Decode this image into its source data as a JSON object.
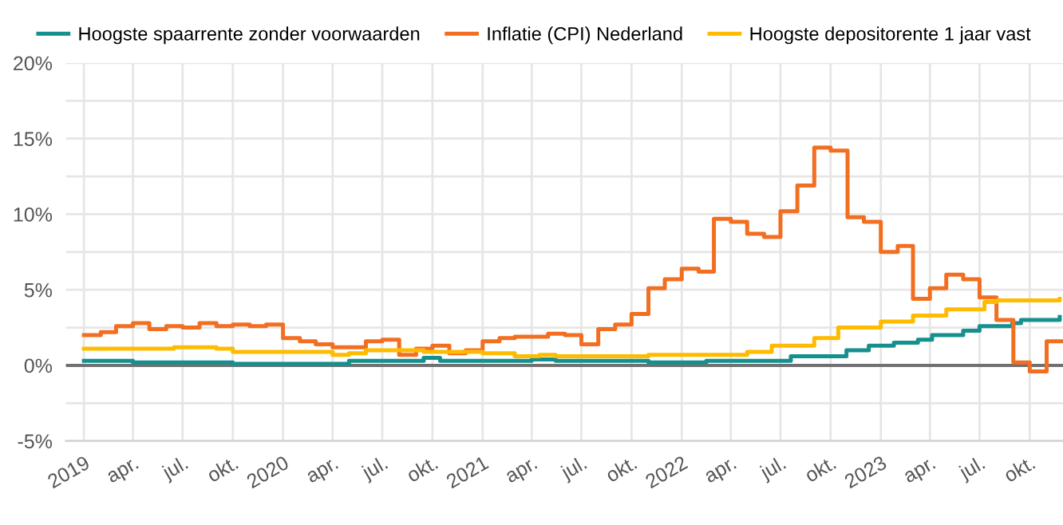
{
  "chart_data": {
    "type": "step",
    "xlim": [
      "2018-11-29",
      "2023-12-01"
    ],
    "ylim": [
      -5,
      20
    ],
    "yticks": [
      {
        "value": -5,
        "label": "-5%"
      },
      {
        "value": -2.5,
        "label": null
      },
      {
        "value": 0,
        "label": "0%"
      },
      {
        "value": 2.5,
        "label": null
      },
      {
        "value": 5,
        "label": "5%"
      },
      {
        "value": 7.5,
        "label": null
      },
      {
        "value": 10,
        "label": "10%"
      },
      {
        "value": 12.5,
        "label": null
      },
      {
        "value": 15,
        "label": "15%"
      },
      {
        "value": 17.5,
        "label": null
      },
      {
        "value": 20,
        "label": "20%"
      }
    ],
    "xticks": [
      {
        "value": "2019-01-01",
        "label": "2019"
      },
      {
        "value": "2019-04-01",
        "label": "apr."
      },
      {
        "value": "2019-07-01",
        "label": "jul."
      },
      {
        "value": "2019-10-01",
        "label": "okt."
      },
      {
        "value": "2020-01-01",
        "label": "2020"
      },
      {
        "value": "2020-04-01",
        "label": "apr."
      },
      {
        "value": "2020-07-01",
        "label": "jul."
      },
      {
        "value": "2020-10-01",
        "label": "okt."
      },
      {
        "value": "2021-01-01",
        "label": "2021"
      },
      {
        "value": "2021-04-01",
        "label": "apr."
      },
      {
        "value": "2021-07-01",
        "label": "jul."
      },
      {
        "value": "2021-10-01",
        "label": "okt."
      },
      {
        "value": "2022-01-01",
        "label": "2022"
      },
      {
        "value": "2022-04-01",
        "label": "apr."
      },
      {
        "value": "2022-07-01",
        "label": "jul."
      },
      {
        "value": "2022-10-01",
        "label": "okt."
      },
      {
        "value": "2023-01-01",
        "label": "2023"
      },
      {
        "value": "2023-04-01",
        "label": "apr."
      },
      {
        "value": "2023-07-01",
        "label": "jul."
      },
      {
        "value": "2023-10-01",
        "label": "okt."
      }
    ],
    "grid": true,
    "legend": "top",
    "ref_lines": [
      {
        "axis": "y",
        "value": 0,
        "label": null,
        "color": "#707070"
      }
    ],
    "series": [
      {
        "name": "Hoogste spaarrente zonder voorwaarden",
        "color": "#16908e",
        "x": [
          "2019-01-01",
          "2019-04-01",
          "2019-10-01",
          "2020-05-01",
          "2020-09-15",
          "2020-10-15",
          "2021-04-01",
          "2021-05-15",
          "2021-11-01",
          "2022-02-15",
          "2022-07-20",
          "2022-10-30",
          "2022-12-10",
          "2023-01-25",
          "2023-03-10",
          "2023-04-05",
          "2023-06-01",
          "2023-07-01",
          "2023-08-30",
          "2023-09-15",
          "2023-11-25"
        ],
        "values": [
          0.3,
          0.2,
          0.1,
          0.3,
          0.5,
          0.3,
          0.4,
          0.3,
          0.2,
          0.3,
          0.6,
          1.0,
          1.3,
          1.5,
          1.7,
          2.0,
          2.3,
          2.6,
          2.8,
          3.0,
          3.2
        ]
      },
      {
        "name": "Inflatie (CPI) Nederland",
        "color": "#f26f21",
        "x": [
          "2019-01",
          "2019-02",
          "2019-03",
          "2019-04",
          "2019-05",
          "2019-06",
          "2019-07",
          "2019-08",
          "2019-09",
          "2019-10",
          "2019-11",
          "2019-12",
          "2020-01",
          "2020-02",
          "2020-03",
          "2020-04",
          "2020-05",
          "2020-06",
          "2020-07",
          "2020-08",
          "2020-09",
          "2020-10",
          "2020-11",
          "2020-12",
          "2021-01",
          "2021-02",
          "2021-03",
          "2021-04",
          "2021-05",
          "2021-06",
          "2021-07",
          "2021-08",
          "2021-09",
          "2021-10",
          "2021-11",
          "2021-12",
          "2022-01",
          "2022-02",
          "2022-03",
          "2022-04",
          "2022-05",
          "2022-06",
          "2022-07",
          "2022-08",
          "2022-09",
          "2022-10",
          "2022-11",
          "2022-12",
          "2023-01",
          "2023-02",
          "2023-03",
          "2023-04",
          "2023-05",
          "2023-06",
          "2023-07",
          "2023-08",
          "2023-09",
          "2023-10",
          "2023-11",
          "2023-11-30"
        ],
        "values": [
          2.0,
          2.2,
          2.6,
          2.8,
          2.4,
          2.6,
          2.5,
          2.8,
          2.6,
          2.7,
          2.6,
          2.7,
          1.8,
          1.6,
          1.4,
          1.2,
          1.2,
          1.6,
          1.7,
          0.7,
          1.1,
          1.3,
          0.8,
          1.0,
          1.6,
          1.8,
          1.9,
          1.9,
          2.1,
          2.0,
          1.4,
          2.4,
          2.7,
          3.4,
          5.1,
          5.7,
          6.4,
          6.2,
          9.7,
          9.5,
          8.7,
          8.5,
          10.2,
          11.9,
          14.4,
          14.2,
          9.8,
          9.5,
          7.5,
          7.9,
          4.4,
          5.1,
          6.0,
          5.7,
          4.5,
          3.0,
          0.2,
          -0.4,
          1.6,
          1.6
        ]
      },
      {
        "name": "Hoogste depositorente 1 jaar vast",
        "color": "#ffbb00",
        "x": [
          "2019-01-01",
          "2019-06-15",
          "2019-09-01",
          "2019-10-01",
          "2020-04-01",
          "2020-05-01",
          "2020-06-01",
          "2020-09-15",
          "2021-01-01",
          "2021-03-01",
          "2021-04-15",
          "2021-05-15",
          "2021-11-01",
          "2022-05-01",
          "2022-06-15",
          "2022-09-01",
          "2022-10-15",
          "2023-01-01",
          "2023-03-01",
          "2023-05-01",
          "2023-07-10",
          "2023-08-01",
          "2023-11-25"
        ],
        "values": [
          1.1,
          1.2,
          1.1,
          0.9,
          0.7,
          0.8,
          1.0,
          0.9,
          0.8,
          0.6,
          0.7,
          0.6,
          0.7,
          0.9,
          1.3,
          1.8,
          2.5,
          2.9,
          3.3,
          3.7,
          4.2,
          4.3,
          4.4
        ]
      }
    ]
  }
}
